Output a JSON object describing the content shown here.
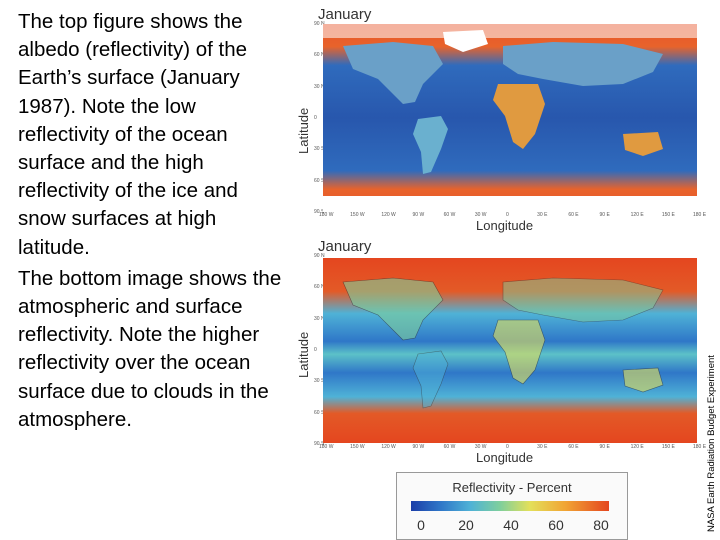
{
  "description_text": {
    "para1": "The top figure shows the albedo (reflectivity) of the Earth’s surface (January 1987).  Note the low reflectivity of the ocean surface and the high reflectivity of the ice and snow surfaces at high latitude.",
    "para2": "The bottom image shows the atmospheric and surface reflectivity.  Note the higher reflectivity over the ocean surface due to clouds in the atmosphere."
  },
  "top_map": {
    "title": "January",
    "ylabel": "Latitude",
    "xlabel": "Longitude",
    "lat_ticks": [
      "90 N",
      "60 N",
      "30 N",
      "0",
      "30 S",
      "60 S",
      "90 S"
    ],
    "lon_ticks": [
      "180 W",
      "150 W",
      "120 W",
      "90 W",
      "60 W",
      "30 W",
      "0",
      "30 E",
      "60 E",
      "90 E",
      "120 E",
      "150 E",
      "180 E"
    ]
  },
  "bottom_map": {
    "title": "January",
    "ylabel": "Latitude",
    "xlabel": "Longitude",
    "lat_ticks": [
      "90 N",
      "60 N",
      "30 N",
      "0",
      "30 S",
      "60 S",
      "90 S"
    ],
    "lon_ticks": [
      "180 W",
      "150 W",
      "120 W",
      "90 W",
      "60 W",
      "30 W",
      "0",
      "30 E",
      "60 E",
      "90 E",
      "120 E",
      "150 E",
      "180 E"
    ]
  },
  "legend": {
    "title": "Reflectivity - Percent",
    "ticks": [
      "0",
      "20",
      "40",
      "60",
      "80"
    ],
    "colors": {
      "low": "#1b3ea8",
      "mid_low": "#4fb2d6",
      "mid": "#7fcf9c",
      "mid_high": "#e3e05a",
      "high": "#e4461f"
    }
  },
  "credit": "NASA Earth Radiation Budget Experiment"
}
